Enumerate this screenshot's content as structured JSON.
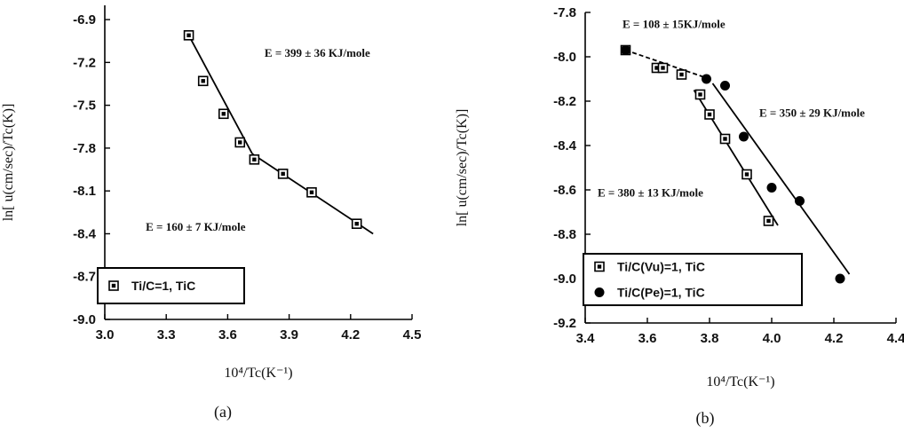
{
  "chart_data": [
    {
      "id": "a",
      "type": "scatter",
      "panel_label": "(a)",
      "xlabel": "10⁴/Tc(K⁻¹)",
      "ylabel": "ln[ u(cm/sec)/Tc(K)]",
      "xlim": [
        3.0,
        4.5
      ],
      "ylim": [
        -9.0,
        -6.8
      ],
      "x_ticks": [
        3.0,
        3.3,
        3.6,
        3.9,
        4.2,
        4.5
      ],
      "y_ticks": [
        -6.9,
        -7.2,
        -7.5,
        -7.8,
        -8.1,
        -8.4,
        -8.7,
        -9.0
      ],
      "series": [
        {
          "name": "Ti/C=1, TiC",
          "marker": "boxed-square",
          "x": [
            3.41,
            3.48,
            3.58,
            3.66,
            3.73,
            3.87,
            4.01,
            4.23
          ],
          "y": [
            -7.01,
            -7.33,
            -7.56,
            -7.76,
            -7.88,
            -7.98,
            -8.11,
            -8.33
          ]
        }
      ],
      "fit_lines": [
        {
          "x": [
            3.41,
            3.72
          ],
          "y": [
            -7.01,
            -7.84
          ]
        },
        {
          "x": [
            3.72,
            4.31
          ],
          "y": [
            -7.84,
            -8.4
          ]
        }
      ],
      "annotations": [
        {
          "text": "E = 399 ± 36 KJ/mole",
          "x": 3.78,
          "y": -7.16
        },
        {
          "text": "E = 160 ± 7 KJ/mole",
          "x": 3.2,
          "y": -8.38
        }
      ],
      "legend": "lower-left"
    },
    {
      "id": "b",
      "type": "scatter",
      "panel_label": "(b)",
      "xlabel": "10⁴/Tc(K⁻¹)",
      "ylabel": "ln[ u(cm/sec)/Tc(K)]",
      "xlim": [
        3.4,
        4.4
      ],
      "ylim": [
        -9.2,
        -7.8
      ],
      "x_ticks": [
        3.4,
        3.6,
        3.8,
        4.0,
        4.2,
        4.4
      ],
      "y_ticks": [
        -7.8,
        -8.0,
        -8.2,
        -8.4,
        -8.6,
        -8.8,
        -9.0,
        -9.2
      ],
      "series": [
        {
          "name": "Ti/C(Vu)=1, TiC",
          "marker": "boxed-square",
          "x": [
            3.53,
            3.63,
            3.65,
            3.71,
            3.77,
            3.8,
            3.85,
            3.92,
            3.99
          ],
          "y": [
            -7.97,
            -8.05,
            -8.05,
            -8.08,
            -8.17,
            -8.26,
            -8.37,
            -8.53,
            -8.74
          ]
        },
        {
          "name": "Ti/C(Pe)=1, TiC",
          "marker": "filled-circle",
          "x": [
            3.53,
            3.79,
            3.85,
            3.91,
            4.0,
            4.09,
            4.22
          ],
          "y": [
            -7.97,
            -8.1,
            -8.13,
            -8.36,
            -8.59,
            -8.65,
            -9.0
          ]
        }
      ],
      "fit_lines": [
        {
          "x": [
            3.53,
            3.8
          ],
          "y": [
            -7.97,
            -8.1
          ],
          "dashed": true
        },
        {
          "x": [
            3.75,
            4.02
          ],
          "y": [
            -8.15,
            -8.76
          ]
        },
        {
          "x": [
            3.81,
            4.25
          ],
          "y": [
            -8.12,
            -8.98
          ]
        }
      ],
      "annotations": [
        {
          "text": "E = 108 ± 15KJ/mole",
          "x": 3.52,
          "y": -7.87
        },
        {
          "text": "E = 350 ± 29 KJ/mole",
          "x": 3.96,
          "y": -8.27
        },
        {
          "text": "E = 380 ± 13 KJ/mole",
          "x": 3.44,
          "y": -8.63
        }
      ],
      "legend": "lower-left"
    }
  ]
}
